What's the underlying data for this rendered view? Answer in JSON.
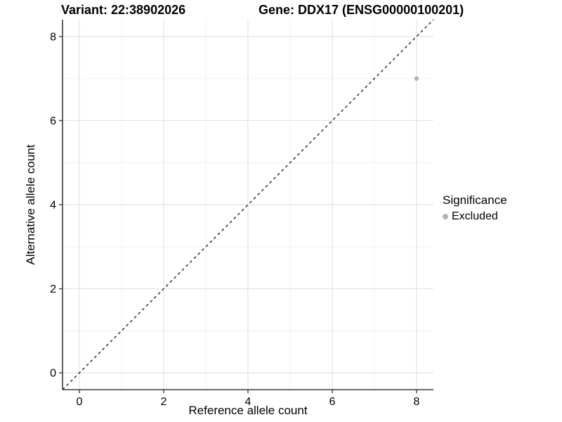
{
  "titles": {
    "variant": "Variant: 22:38902026",
    "gene": "Gene: DDX17 (ENSG00000100201)"
  },
  "axes": {
    "x_label": "Reference allele count",
    "y_label": "Alternative allele count"
  },
  "legend": {
    "title": "Significance",
    "items": [
      {
        "label": "Excluded",
        "color": "#b4b4b4"
      }
    ]
  },
  "chart_data": {
    "type": "scatter",
    "title": "Variant: 22:38902026   Gene: DDX17 (ENSG00000100201)",
    "xlabel": "Reference allele count",
    "ylabel": "Alternative allele count",
    "xlim": [
      -0.4,
      8.4
    ],
    "ylim": [
      -0.4,
      8.4
    ],
    "x_ticks": [
      0,
      2,
      4,
      6,
      8
    ],
    "y_ticks": [
      0,
      2,
      4,
      6,
      8
    ],
    "x_minor_ticks": [
      1,
      3,
      5,
      7
    ],
    "y_minor_ticks": [
      1,
      3,
      5,
      7
    ],
    "grid": true,
    "legend_position": "right",
    "series": [
      {
        "name": "Excluded",
        "points": [
          {
            "x": 8,
            "y": 7
          }
        ]
      }
    ],
    "reference_line": {
      "slope": 1,
      "intercept": 0,
      "style": "dashed"
    },
    "colors": {
      "point": "#b4b4b4",
      "grid_major": "#e3e3e3",
      "grid_minor": "#f0f0f0",
      "axis_line": "#3a3a3a",
      "reference_line": "#000000",
      "tick_text": "#000000",
      "background": "#ffffff"
    }
  }
}
